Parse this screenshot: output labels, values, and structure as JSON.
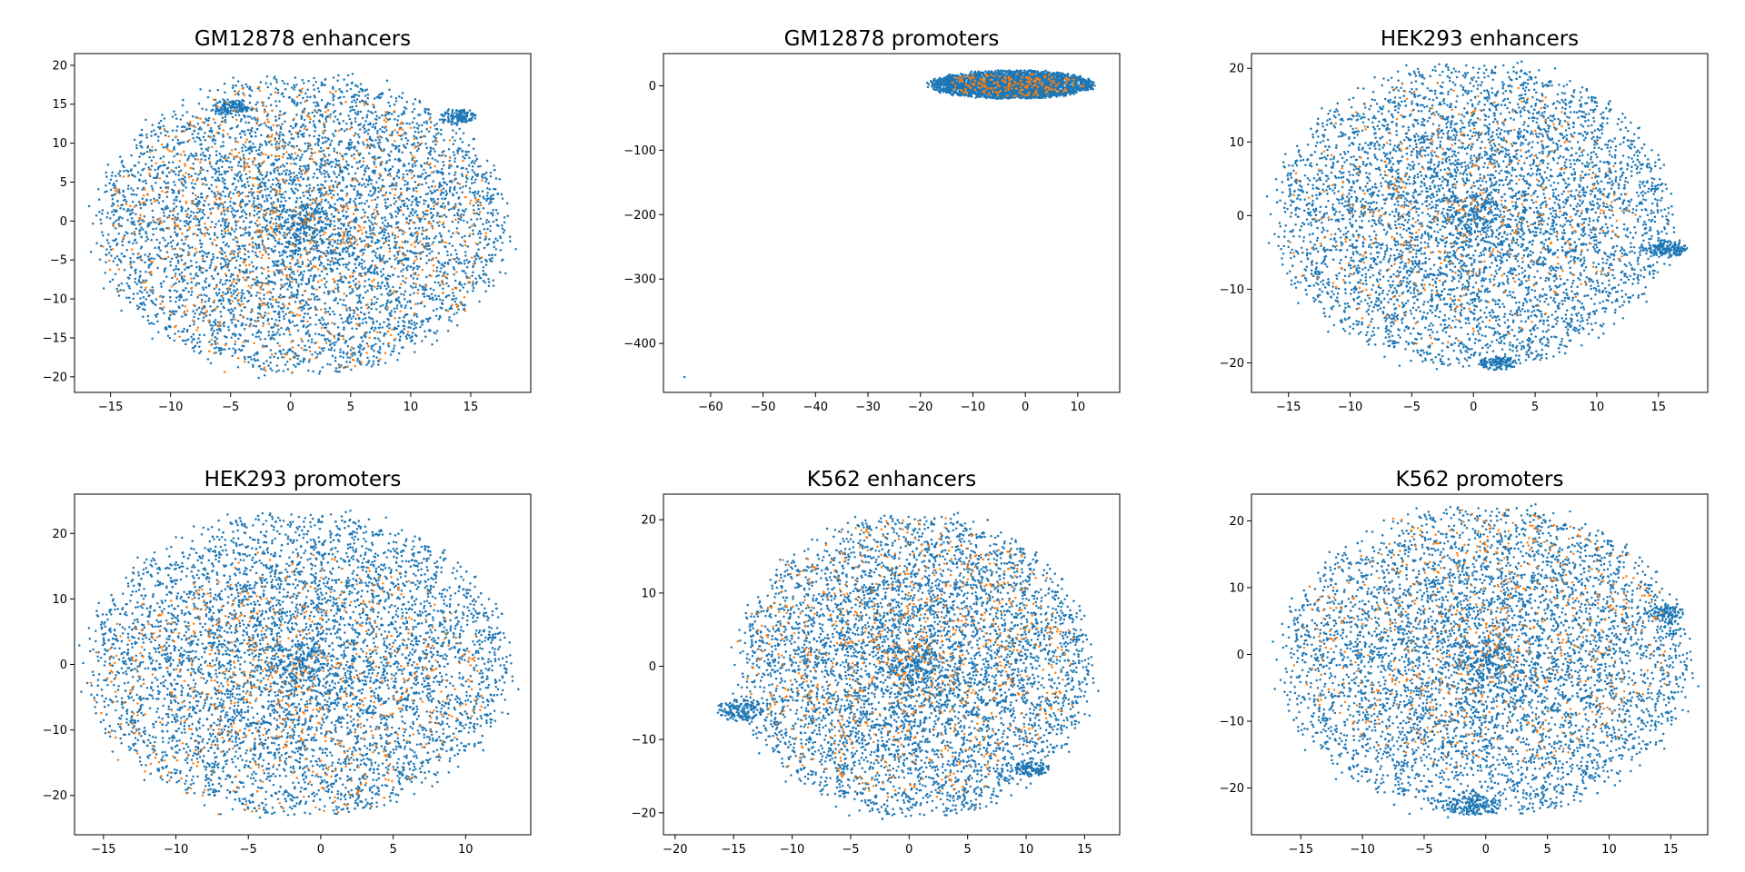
{
  "colors": {
    "series_a": "#1f77b4",
    "series_b": "#ff7f0e",
    "background": "#ffffff"
  },
  "chart_data": [
    {
      "type": "scatter",
      "title": "GM12878 enhancers",
      "xlim": [
        -18,
        20
      ],
      "ylim": [
        -22,
        21.5
      ],
      "xticks": [
        -15,
        -10,
        -5,
        0,
        5,
        10,
        15
      ],
      "yticks": [
        -20,
        -15,
        -10,
        -5,
        0,
        5,
        10,
        15,
        20
      ],
      "grid": false,
      "series": [
        {
          "color": "#1f77b4",
          "clusters": [
            {
              "cx": 1.0,
              "cy": -0.5,
              "rx": 17.0,
              "ry": 19.0,
              "n": 5200
            },
            {
              "cx": -5.0,
              "cy": 14.5,
              "rx": 1.5,
              "ry": 1.0,
              "n": 120
            },
            {
              "cx": 14.0,
              "cy": 13.5,
              "rx": 1.5,
              "ry": 1.0,
              "n": 120
            }
          ]
        },
        {
          "color": "#ff7f0e",
          "clusters": [
            {
              "cx": 0.5,
              "cy": -1.0,
              "rx": 16.0,
              "ry": 18.5,
              "n": 850
            }
          ]
        }
      ]
    },
    {
      "type": "scatter",
      "title": "GM12878 promoters",
      "xlim": [
        -69,
        18
      ],
      "ylim": [
        -476,
        50
      ],
      "xticks": [
        -60,
        -50,
        -40,
        -30,
        -20,
        -10,
        0,
        10
      ],
      "yticks": [
        -400,
        -300,
        -200,
        -100,
        0
      ],
      "grid": false,
      "series": [
        {
          "color": "#1f77b4",
          "clusters": [
            {
              "cx": -2.5,
              "cy": 2,
              "rx": 15.5,
              "ry": 22,
              "n": 3200
            },
            {
              "cx": -65,
              "cy": -452,
              "rx": 0.3,
              "ry": 1,
              "n": 1
            }
          ]
        },
        {
          "color": "#ff7f0e",
          "clusters": [
            {
              "cx": -2.5,
              "cy": 2,
              "rx": 13,
              "ry": 18,
              "n": 200
            }
          ]
        }
      ]
    },
    {
      "type": "scatter",
      "title": "HEK293 enhancers",
      "xlim": [
        -18,
        19
      ],
      "ylim": [
        -24,
        22
      ],
      "xticks": [
        -15,
        -10,
        -5,
        0,
        5,
        10,
        15
      ],
      "yticks": [
        -20,
        -10,
        0,
        10,
        20
      ],
      "grid": false,
      "series": [
        {
          "color": "#1f77b4",
          "clusters": [
            {
              "cx": 0.0,
              "cy": 0.0,
              "rx": 16.0,
              "ry": 20.5,
              "n": 5600
            },
            {
              "cx": 15.5,
              "cy": -4.5,
              "rx": 1.8,
              "ry": 1.2,
              "n": 160
            },
            {
              "cx": 2.0,
              "cy": -20.0,
              "rx": 1.5,
              "ry": 1.0,
              "n": 120
            }
          ]
        },
        {
          "color": "#ff7f0e",
          "clusters": [
            {
              "cx": -1.0,
              "cy": 0.0,
              "rx": 14.0,
              "ry": 18.0,
              "n": 420
            }
          ]
        }
      ]
    },
    {
      "type": "scatter",
      "title": "HEK293 promoters",
      "xlim": [
        -17,
        14.5
      ],
      "ylim": [
        -26,
        26
      ],
      "xticks": [
        -15,
        -10,
        -5,
        0,
        5,
        10
      ],
      "yticks": [
        -20,
        -10,
        0,
        10,
        20
      ],
      "grid": false,
      "series": [
        {
          "color": "#1f77b4",
          "clusters": [
            {
              "cx": -1.5,
              "cy": 0.0,
              "rx": 14.5,
              "ry": 23.0,
              "n": 5800
            }
          ]
        },
        {
          "color": "#ff7f0e",
          "clusters": [
            {
              "cx": -2.0,
              "cy": -3.0,
              "rx": 13.5,
              "ry": 20.0,
              "n": 700
            }
          ]
        }
      ]
    },
    {
      "type": "scatter",
      "title": "K562 enhancers",
      "xlim": [
        -21,
        18
      ],
      "ylim": [
        -23,
        23.5
      ],
      "xticks": [
        -20,
        -15,
        -10,
        -5,
        0,
        5,
        10,
        15
      ],
      "yticks": [
        -20,
        -10,
        0,
        10,
        20
      ],
      "grid": false,
      "series": [
        {
          "color": "#1f77b4",
          "clusters": [
            {
              "cx": 0.5,
              "cy": 0.0,
              "rx": 15.0,
              "ry": 20.5,
              "n": 5400
            },
            {
              "cx": -14.5,
              "cy": -6.0,
              "rx": 2.0,
              "ry": 1.5,
              "n": 160
            },
            {
              "cx": 10.5,
              "cy": -14.0,
              "rx": 1.5,
              "ry": 1.0,
              "n": 100
            }
          ]
        },
        {
          "color": "#ff7f0e",
          "clusters": [
            {
              "cx": 0.0,
              "cy": 1.0,
              "rx": 14.0,
              "ry": 19.0,
              "n": 800
            }
          ]
        }
      ]
    },
    {
      "type": "scatter",
      "title": "K562 promoters",
      "xlim": [
        -19,
        18
      ],
      "ylim": [
        -27,
        24
      ],
      "xticks": [
        -15,
        -10,
        -5,
        0,
        5,
        10,
        15
      ],
      "yticks": [
        -20,
        -10,
        0,
        10,
        20
      ],
      "grid": false,
      "series": [
        {
          "color": "#1f77b4",
          "clusters": [
            {
              "cx": 0.0,
              "cy": -1.0,
              "rx": 16.5,
              "ry": 23.0,
              "n": 5800
            },
            {
              "cx": -1.0,
              "cy": -22.5,
              "rx": 2.5,
              "ry": 1.5,
              "n": 160
            },
            {
              "cx": 14.5,
              "cy": 6.0,
              "rx": 1.5,
              "ry": 1.5,
              "n": 100
            }
          ]
        },
        {
          "color": "#ff7f0e",
          "clusters": [
            {
              "cx": 0.0,
              "cy": 2.0,
              "rx": 15.0,
              "ry": 20.0,
              "n": 650
            }
          ]
        }
      ]
    }
  ]
}
